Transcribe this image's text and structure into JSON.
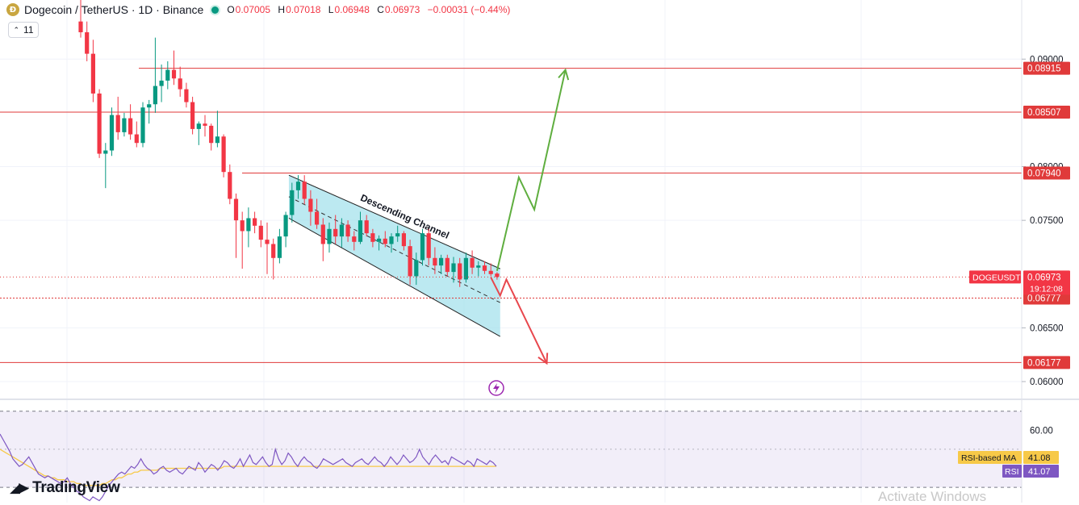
{
  "header": {
    "symbol": "Dogecoin / TetherUS · 1D · Binance",
    "coin_glyph": "Ð",
    "ohlc": [
      {
        "k": "O",
        "v": "0.07005"
      },
      {
        "k": "H",
        "v": "0.07018"
      },
      {
        "k": "L",
        "v": "0.06948"
      },
      {
        "k": "C",
        "v": "0.06973"
      }
    ],
    "change": "−0.00031 (−0.44%)",
    "volume_pill": "11"
  },
  "brand": {
    "logo": "◢▶",
    "name": "TradingView"
  },
  "watermark": "Activate Windows",
  "colors": {
    "up": "#089981",
    "down": "#f23645",
    "level": "#e03a3a",
    "channel_fill": "#a5e1ec",
    "arrow_up": "#5fae3f",
    "arrow_down": "#e8474d",
    "rsi": "#7e57c2",
    "rsi_ma": "#f7c948"
  },
  "chart_data": [
    {
      "type": "candlestick",
      "title": "Dogecoin / TetherUS · 1D · Binance",
      "y_axis": {
        "ticks": [
          0.09,
          0.08,
          0.075,
          0.065,
          0.06
        ],
        "tick_labels": [
          "0.09000",
          "0.08000",
          "0.07500",
          "0.06500",
          "0.06000"
        ],
        "ylim": [
          0.0585,
          0.0955
        ]
      },
      "ohlc": [
        [
          0.0935,
          0.0955,
          0.092,
          0.0925
        ],
        [
          0.0925,
          0.0935,
          0.0898,
          0.0905
        ],
        [
          0.0905,
          0.0918,
          0.086,
          0.0868
        ],
        [
          0.0868,
          0.0872,
          0.0808,
          0.0812
        ],
        [
          0.0812,
          0.0822,
          0.078,
          0.0815
        ],
        [
          0.0815,
          0.0855,
          0.081,
          0.0848
        ],
        [
          0.0848,
          0.0865,
          0.0825,
          0.0832
        ],
        [
          0.0832,
          0.085,
          0.0828,
          0.0845
        ],
        [
          0.0845,
          0.0858,
          0.0825,
          0.083
        ],
        [
          0.083,
          0.0842,
          0.0818,
          0.0822
        ],
        [
          0.0822,
          0.086,
          0.0818,
          0.0855
        ],
        [
          0.0855,
          0.0862,
          0.084,
          0.0858
        ],
        [
          0.0858,
          0.092,
          0.085,
          0.0875
        ],
        [
          0.0875,
          0.0895,
          0.086,
          0.088
        ],
        [
          0.088,
          0.0898,
          0.0872,
          0.089
        ],
        [
          0.089,
          0.0908,
          0.0876,
          0.0882
        ],
        [
          0.0882,
          0.0893,
          0.0865,
          0.0872
        ],
        [
          0.0872,
          0.0878,
          0.0855,
          0.086
        ],
        [
          0.086,
          0.0865,
          0.083,
          0.0835
        ],
        [
          0.0835,
          0.0842,
          0.082,
          0.084
        ],
        [
          0.084,
          0.0848,
          0.0828,
          0.0838
        ],
        [
          0.0838,
          0.084,
          0.0815,
          0.0822
        ],
        [
          0.0822,
          0.0852,
          0.0818,
          0.0828
        ],
        [
          0.0828,
          0.083,
          0.079,
          0.0795
        ],
        [
          0.0795,
          0.0802,
          0.0765,
          0.077
        ],
        [
          0.077,
          0.0775,
          0.0715,
          0.075
        ],
        [
          0.075,
          0.0758,
          0.0705,
          0.074
        ],
        [
          0.074,
          0.0762,
          0.0725,
          0.0752
        ],
        [
          0.0752,
          0.0758,
          0.0738,
          0.0745
        ],
        [
          0.0745,
          0.075,
          0.0725,
          0.0732
        ],
        [
          0.0732,
          0.0748,
          0.07,
          0.0728
        ],
        [
          0.0728,
          0.0733,
          0.0695,
          0.0715
        ],
        [
          0.0715,
          0.0742,
          0.071,
          0.0735
        ],
        [
          0.0735,
          0.0758,
          0.0725,
          0.0755
        ],
        [
          0.0755,
          0.0785,
          0.0748,
          0.0778
        ],
        [
          0.0778,
          0.0792,
          0.077,
          0.0786
        ],
        [
          0.0786,
          0.0792,
          0.0765,
          0.077
        ],
        [
          0.077,
          0.0778,
          0.0745,
          0.0758
        ],
        [
          0.0758,
          0.077,
          0.0742,
          0.0746
        ],
        [
          0.0746,
          0.0752,
          0.0712,
          0.0728
        ],
        [
          0.0728,
          0.0748,
          0.072,
          0.0742
        ],
        [
          0.0742,
          0.0755,
          0.0728,
          0.0735
        ],
        [
          0.0735,
          0.0752,
          0.0725,
          0.0746
        ],
        [
          0.0746,
          0.075,
          0.073,
          0.0735
        ],
        [
          0.0735,
          0.074,
          0.0722,
          0.073
        ],
        [
          0.073,
          0.0758,
          0.0728,
          0.075
        ],
        [
          0.075,
          0.0755,
          0.0735,
          0.0738
        ],
        [
          0.0738,
          0.0742,
          0.0725,
          0.073
        ],
        [
          0.073,
          0.0736,
          0.0722,
          0.0733
        ],
        [
          0.0733,
          0.074,
          0.0725,
          0.0728
        ],
        [
          0.0728,
          0.0738,
          0.072,
          0.0735
        ],
        [
          0.0735,
          0.0745,
          0.073,
          0.0738
        ],
        [
          0.0738,
          0.074,
          0.0722,
          0.0726
        ],
        [
          0.0726,
          0.0732,
          0.069,
          0.0698
        ],
        [
          0.0698,
          0.072,
          0.069,
          0.0713
        ],
        [
          0.0713,
          0.0742,
          0.0708,
          0.0738
        ],
        [
          0.0738,
          0.0742,
          0.0708,
          0.0715
        ],
        [
          0.0715,
          0.0725,
          0.07,
          0.0708
        ],
        [
          0.0708,
          0.0718,
          0.07,
          0.0715
        ],
        [
          0.0715,
          0.0718,
          0.0698,
          0.0702
        ],
        [
          0.0702,
          0.0716,
          0.0692,
          0.071
        ],
        [
          0.071,
          0.0715,
          0.0688,
          0.0695
        ],
        [
          0.0695,
          0.072,
          0.0692,
          0.0715
        ],
        [
          0.0715,
          0.0722,
          0.07,
          0.0706
        ],
        [
          0.0706,
          0.0712,
          0.0698,
          0.0708
        ],
        [
          0.0708,
          0.0712,
          0.07,
          0.0703
        ],
        [
          0.0703,
          0.071,
          0.0698,
          0.07
        ],
        [
          0.07005,
          0.07018,
          0.06948,
          0.06973
        ]
      ],
      "levels": [
        {
          "value": 0.08915,
          "label": "0.08915"
        },
        {
          "value": 0.08507,
          "label": "0.08507"
        },
        {
          "value": 0.0794,
          "label": "0.07940"
        },
        {
          "value": 0.06777,
          "label": "0.06777"
        },
        {
          "value": 0.06177,
          "label": "0.06177"
        }
      ],
      "current_price": {
        "symbol": "DOGEUSDT",
        "value": 0.06973,
        "label": "0.06973",
        "countdown": "19:12:08"
      },
      "annotations": [
        {
          "type": "channel",
          "label": "Descending Channel",
          "upper": [
            [
              0.0792,
              33.5
            ],
            [
              0.0705,
              67.5
            ]
          ],
          "lower": [
            [
              0.0752,
              33.5
            ],
            [
              0.0642,
              67.5
            ]
          ]
        },
        {
          "type": "arrow-up",
          "path": [
            [
              0.0703,
              67.0
            ],
            [
              0.079,
              70.5
            ],
            [
              0.076,
              73.0
            ],
            [
              0.089,
              78.0
            ]
          ]
        },
        {
          "type": "arrow-down",
          "path": [
            [
              0.0697,
              66.0
            ],
            [
              0.068,
              67.5
            ],
            [
              0.0695,
              68.5
            ],
            [
              0.0617,
              75.0
            ]
          ]
        }
      ]
    },
    {
      "type": "line",
      "title": "RSI",
      "y_axis": {
        "ticks": [
          60
        ],
        "tick_labels": [
          "60.00"
        ],
        "ylim": [
          22,
          72
        ],
        "band": [
          30,
          70
        ]
      },
      "series": [
        {
          "name": "RSI",
          "label": "RSI",
          "value_label": "41.07",
          "values": [
            58,
            55,
            52,
            49,
            45,
            43,
            41,
            42,
            44,
            46,
            43,
            40,
            37,
            36,
            35,
            36,
            35,
            34,
            33,
            32,
            33,
            35,
            32,
            30,
            28,
            27,
            25,
            24,
            23,
            25,
            24,
            23,
            25,
            28,
            31,
            33,
            35,
            37,
            38,
            37,
            39,
            41,
            40,
            42,
            45,
            42,
            40,
            39,
            37,
            38,
            40,
            41,
            39,
            38,
            39,
            40,
            38,
            37,
            39,
            41,
            40,
            39,
            43,
            41,
            38,
            40,
            42,
            41,
            39,
            41,
            44,
            43,
            41,
            40,
            42,
            45,
            41,
            44,
            47,
            43,
            42,
            44,
            46,
            43,
            41,
            42,
            50,
            45,
            42,
            44,
            48,
            46,
            43,
            41,
            44,
            46,
            44,
            43,
            41,
            40,
            42,
            45,
            44,
            43,
            42,
            43,
            44,
            45,
            43,
            42,
            41,
            43,
            44,
            45,
            43,
            42,
            44,
            46,
            44,
            43,
            41,
            43,
            46,
            44,
            42,
            44,
            47,
            45,
            43,
            44,
            46,
            50,
            46,
            44,
            42,
            45,
            47,
            45,
            43,
            44,
            42,
            46,
            45,
            44,
            43,
            42,
            44,
            43,
            41,
            45,
            44,
            43,
            42,
            44,
            43,
            41.07
          ]
        },
        {
          "name": "RSI-based MA",
          "label": "RSI-based MA",
          "value_label": "41.08",
          "values": [
            50,
            49,
            48,
            47,
            46,
            45,
            44,
            43,
            42,
            41,
            40,
            39,
            38,
            37,
            36,
            36,
            35,
            35,
            34,
            34,
            34,
            33,
            33,
            33,
            32,
            32,
            31,
            31,
            31,
            31,
            31,
            31,
            32,
            32,
            33,
            34,
            34,
            35,
            35,
            36,
            37,
            37,
            38,
            38,
            39,
            39,
            39,
            39,
            39,
            39,
            40,
            40,
            40,
            40,
            40,
            40,
            40,
            40,
            40,
            40,
            40,
            40,
            40,
            40,
            40,
            40,
            40,
            40,
            40,
            40,
            41,
            41,
            41,
            41,
            41,
            41,
            41,
            41,
            41,
            41,
            41,
            41,
            41,
            41,
            41,
            41,
            41,
            41,
            41,
            41,
            41,
            41,
            41,
            41,
            41,
            41,
            41,
            41,
            41,
            41,
            41,
            41,
            41,
            41,
            41,
            41,
            41,
            41,
            41,
            41,
            41,
            41,
            41,
            41,
            41,
            41,
            41,
            41,
            41,
            41,
            41,
            41,
            41,
            41,
            41,
            41,
            41,
            41,
            41,
            41,
            41,
            41,
            41,
            41,
            41,
            41,
            41,
            41,
            41,
            41,
            41,
            41,
            41,
            41,
            41,
            41,
            41,
            41,
            41,
            41,
            41,
            41,
            41,
            41,
            41,
            41.08
          ]
        }
      ]
    }
  ]
}
